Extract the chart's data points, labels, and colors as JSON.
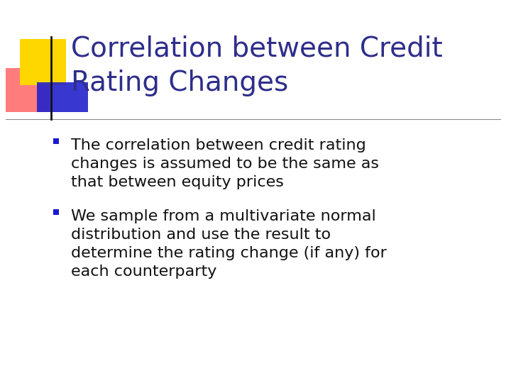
{
  "title_line1": "Correlation between Credit",
  "title_line2": "Rating Changes",
  "title_color": "#2E2E8B",
  "bullet1_lines": [
    "The correlation between credit rating",
    "changes is assumed to be the same as",
    "that between equity prices"
  ],
  "bullet2_lines": [
    "We sample from a multivariate normal",
    "distribution and use the result to",
    "determine the rating change (if any) for",
    "each counterparty"
  ],
  "bullet_color": "#1a1aCC",
  "text_color": "#111111",
  "background_color": "#FFFFFF",
  "title_fontsize": 28,
  "body_fontsize": 16,
  "logo_yellow": "#FFD700",
  "logo_red_center": "#FF4444",
  "logo_blue": "#2222CC",
  "logo_line_color": "#111111"
}
